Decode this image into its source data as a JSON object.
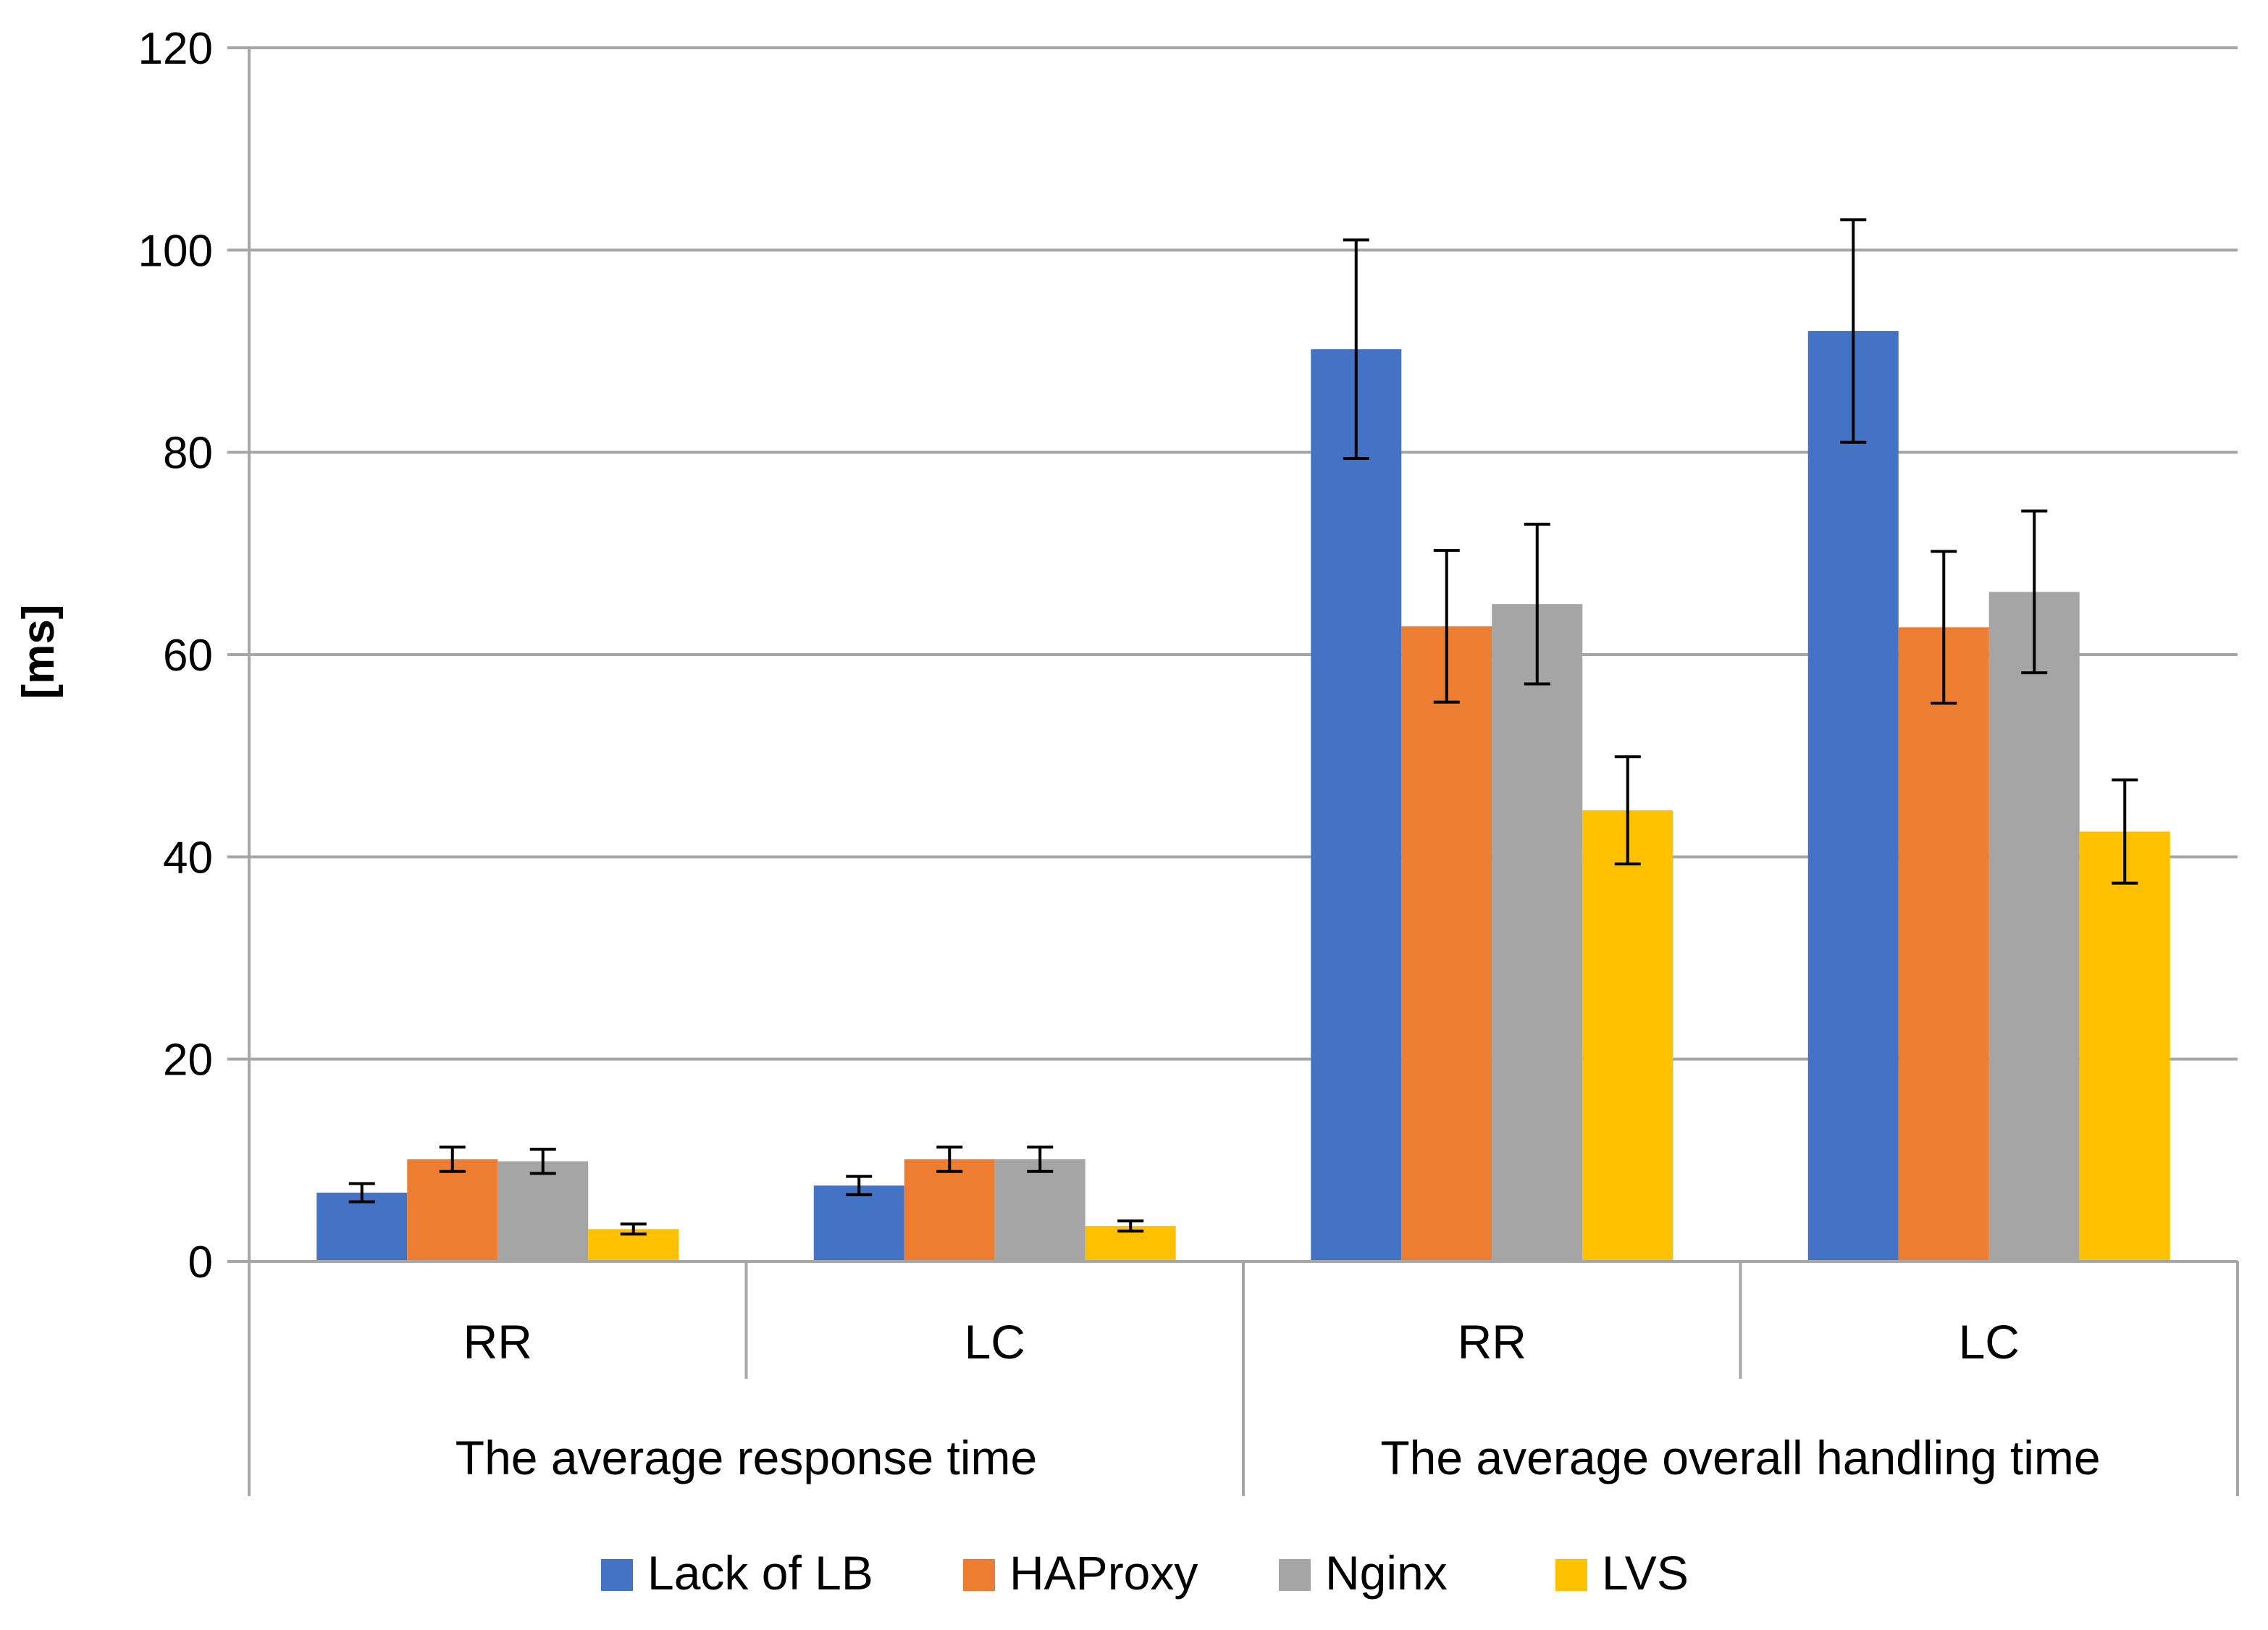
{
  "chart_data": {
    "type": "bar",
    "ylabel": "[ms]",
    "ylim": [
      0,
      120
    ],
    "yticks": [
      0,
      20,
      40,
      60,
      80,
      100,
      120
    ],
    "grid": true,
    "legend_position": "bottom",
    "groups": [
      {
        "label": "The average response time",
        "categories": [
          "RR",
          "LC"
        ]
      },
      {
        "label": "The average overall handling time",
        "categories": [
          "RR",
          "LC"
        ]
      }
    ],
    "series": [
      {
        "name": "Lack of LB",
        "color": "#4472C4",
        "values": [
          6.8,
          7.5,
          90.2,
          92.0
        ],
        "errors": [
          0.9,
          0.9,
          10.8,
          11.0
        ]
      },
      {
        "name": "HAProxy",
        "color": "#ED7D31",
        "values": [
          10.1,
          10.1,
          62.8,
          62.7
        ],
        "errors": [
          1.2,
          1.2,
          7.5,
          7.5
        ]
      },
      {
        "name": "Nginx",
        "color": "#A5A5A5",
        "values": [
          9.9,
          10.1,
          65.0,
          66.2
        ],
        "errors": [
          1.2,
          1.2,
          7.9,
          8.0
        ]
      },
      {
        "name": "LVS",
        "color": "#FFC000",
        "values": [
          3.2,
          3.5,
          44.6,
          42.5
        ],
        "errors": [
          0.5,
          0.5,
          5.3,
          5.1
        ]
      }
    ]
  }
}
